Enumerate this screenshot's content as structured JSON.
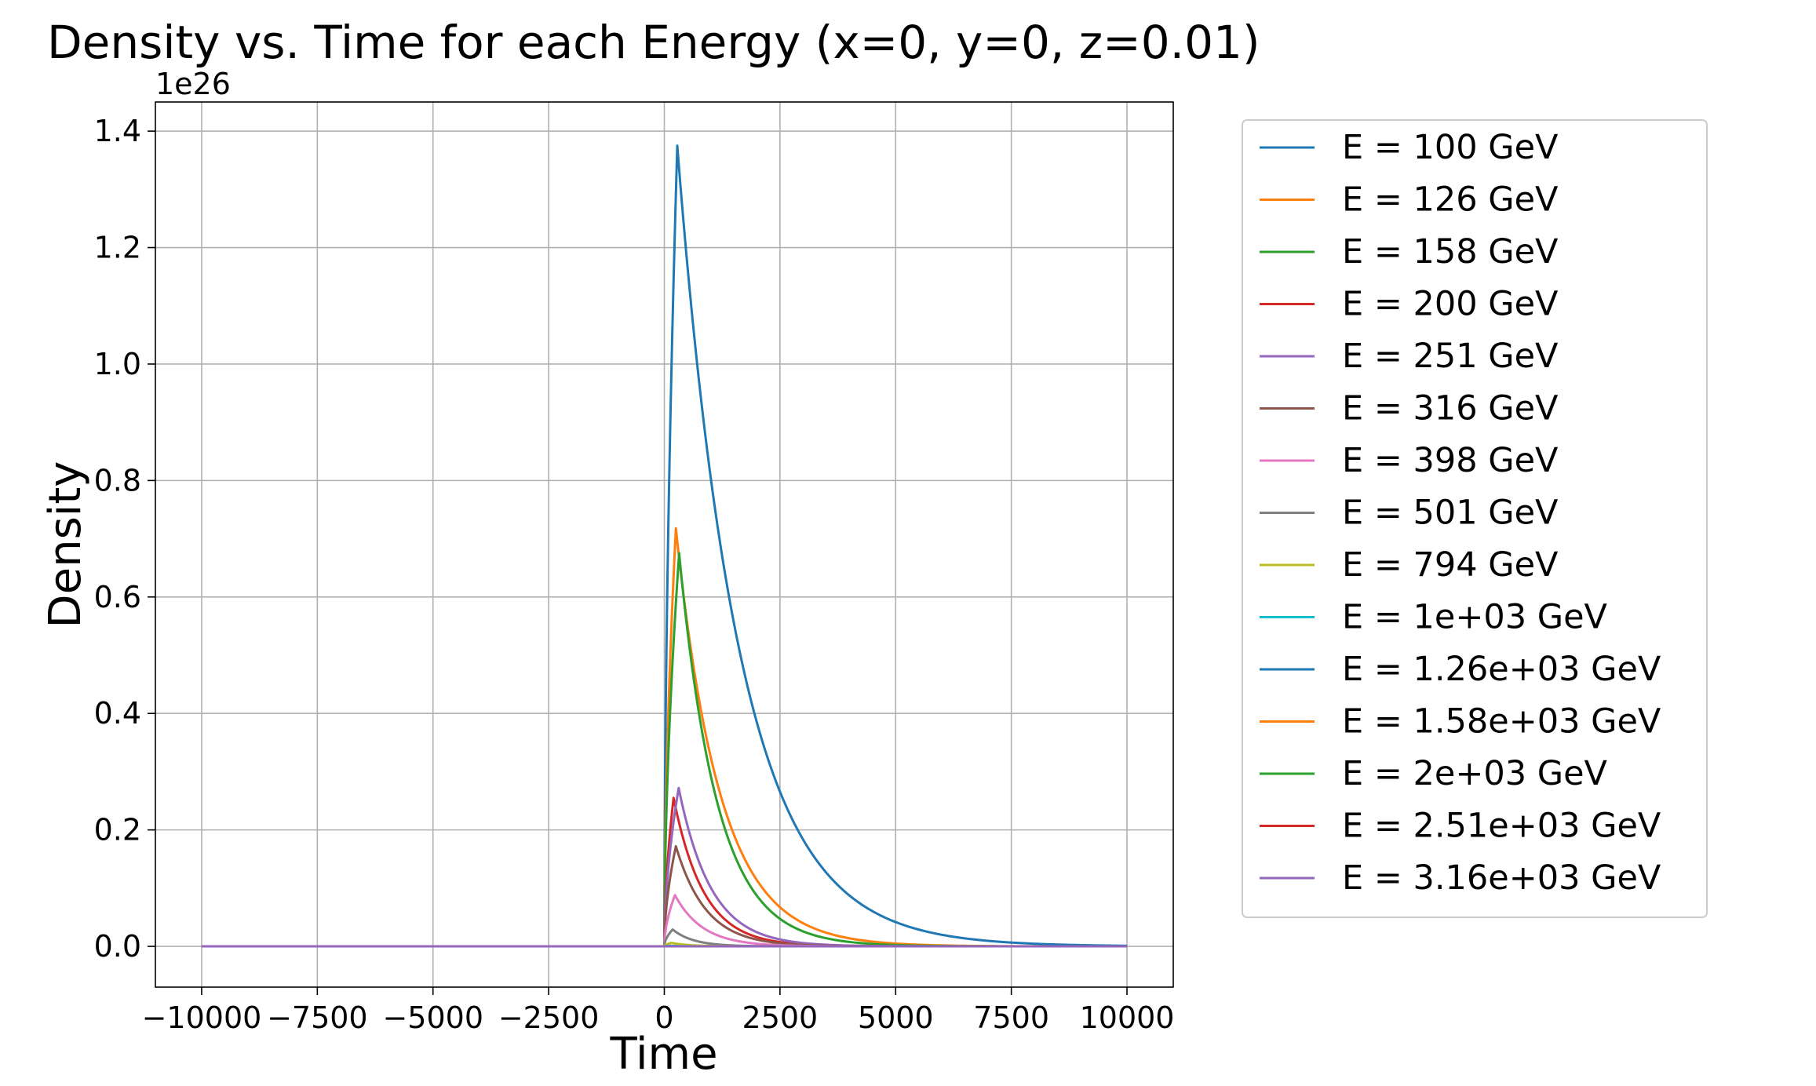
{
  "chart_data": {
    "type": "line",
    "title": "Density vs. Time for each Energy (x=0, y=0, z=0.01)",
    "xlabel": "Time",
    "ylabel": "Density",
    "y_offset_label": "1e26",
    "y_scale_factor": 1e+26,
    "xlim": [
      -11000,
      11000
    ],
    "ylim": [
      -0.07,
      1.45
    ],
    "x_ticks": [
      -10000,
      -7500,
      -5000,
      -2500,
      0,
      2500,
      5000,
      7500,
      10000
    ],
    "x_tick_labels": [
      "−10000",
      "−7500",
      "−5000",
      "−2500",
      "0",
      "2500",
      "5000",
      "7500",
      "10000"
    ],
    "y_ticks": [
      0.0,
      0.2,
      0.4,
      0.6,
      0.8,
      1.0,
      1.2,
      1.4
    ],
    "y_tick_labels": [
      "0.0",
      "0.2",
      "0.4",
      "0.6",
      "0.8",
      "1.0",
      "1.2",
      "1.4"
    ],
    "grid": true,
    "legend_position": "outside-right",
    "t_range": [
      -10000,
      10000
    ],
    "series": [
      {
        "name": "E = 100 GeV",
        "color": "#1f77b4",
        "peak_density": 1.375,
        "peak_time": 280,
        "decay_time": 1350
      },
      {
        "name": "E = 126 GeV",
        "color": "#ff7f0e",
        "peak_density": 0.718,
        "peak_time": 250,
        "decay_time": 950
      },
      {
        "name": "E = 158 GeV",
        "color": "#2ca02c",
        "peak_density": 0.675,
        "peak_time": 320,
        "decay_time": 820
      },
      {
        "name": "E = 200 GeV",
        "color": "#d62728",
        "peak_density": 0.255,
        "peak_time": 200,
        "decay_time": 650
      },
      {
        "name": "E = 251 GeV",
        "color": "#9467bd",
        "peak_density": 0.272,
        "peak_time": 310,
        "decay_time": 700
      },
      {
        "name": "E = 316 GeV",
        "color": "#8c564b",
        "peak_density": 0.172,
        "peak_time": 250,
        "decay_time": 650
      },
      {
        "name": "E = 398 GeV",
        "color": "#e377c2",
        "peak_density": 0.088,
        "peak_time": 230,
        "decay_time": 600
      },
      {
        "name": "E = 501 GeV",
        "color": "#7f7f7f",
        "peak_density": 0.029,
        "peak_time": 180,
        "decay_time": 450
      },
      {
        "name": "E = 794 GeV",
        "color": "#bcbd22",
        "peak_density": 0.006,
        "peak_time": 150,
        "decay_time": 400
      },
      {
        "name": "E = 1e+03 GeV",
        "color": "#17becf",
        "peak_density": 0.001,
        "peak_time": 120,
        "decay_time": 300
      },
      {
        "name": "E = 1.26e+03 GeV",
        "color": "#1f77b4",
        "peak_density": 0.0,
        "peak_time": 100,
        "decay_time": 300
      },
      {
        "name": "E = 1.58e+03 GeV",
        "color": "#ff7f0e",
        "peak_density": 0.0,
        "peak_time": 100,
        "decay_time": 300
      },
      {
        "name": "E = 2e+03 GeV",
        "color": "#2ca02c",
        "peak_density": 0.0,
        "peak_time": 100,
        "decay_time": 300
      },
      {
        "name": "E = 2.51e+03 GeV",
        "color": "#d62728",
        "peak_density": 0.0,
        "peak_time": 100,
        "decay_time": 300
      },
      {
        "name": "E = 3.16e+03 GeV",
        "color": "#9467bd",
        "peak_density": 0.0,
        "peak_time": 100,
        "decay_time": 300
      }
    ]
  }
}
